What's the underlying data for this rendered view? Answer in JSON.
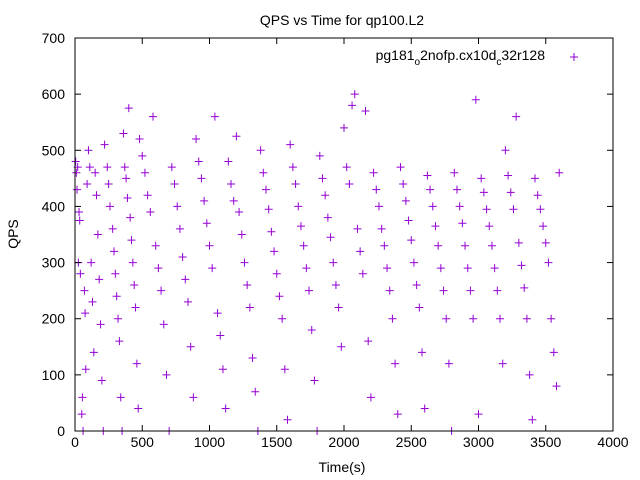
{
  "chart_data": {
    "type": "scatter",
    "title": "QPS vs Time for qp100.L2",
    "xlabel": "Time(s)",
    "ylabel": "QPS",
    "xlim": [
      0,
      4000
    ],
    "ylim": [
      0,
      700
    ],
    "x_ticks": [
      "0",
      "500",
      "1000",
      "1500",
      "2000",
      "2500",
      "3000",
      "3500",
      "4000"
    ],
    "y_ticks": [
      "0",
      "100",
      "200",
      "300",
      "400",
      "500",
      "600",
      "700"
    ],
    "grid": false,
    "legend_position": "top-right",
    "marker": "+",
    "color": "#9400d3",
    "series": [
      {
        "name": "pg181_o2nofp.cx10d_c32r128",
        "legend_parts": {
          "a": "pg181",
          "s1": "o",
          "b": "2nofp.cx10d",
          "s2": "c",
          "c": "32r128"
        },
        "values": [
          [
            5,
            480
          ],
          [
            10,
            460
          ],
          [
            15,
            430
          ],
          [
            20,
            470
          ],
          [
            25,
            300
          ],
          [
            30,
            390
          ],
          [
            35,
            375
          ],
          [
            40,
            280
          ],
          [
            50,
            30
          ],
          [
            55,
            60
          ],
          [
            60,
            0
          ],
          [
            70,
            250
          ],
          [
            75,
            210
          ],
          [
            80,
            110
          ],
          [
            90,
            440
          ],
          [
            100,
            500
          ],
          [
            110,
            470
          ],
          [
            120,
            300
          ],
          [
            130,
            230
          ],
          [
            140,
            140
          ],
          [
            150,
            460
          ],
          [
            160,
            420
          ],
          [
            170,
            350
          ],
          [
            180,
            270
          ],
          [
            190,
            190
          ],
          [
            200,
            90
          ],
          [
            210,
            0
          ],
          [
            220,
            510
          ],
          [
            240,
            470
          ],
          [
            250,
            440
          ],
          [
            260,
            400
          ],
          [
            280,
            360
          ],
          [
            290,
            320
          ],
          [
            300,
            280
          ],
          [
            310,
            240
          ],
          [
            320,
            200
          ],
          [
            330,
            160
          ],
          [
            340,
            60
          ],
          [
            350,
            0
          ],
          [
            360,
            530
          ],
          [
            370,
            470
          ],
          [
            380,
            450
          ],
          [
            390,
            415
          ],
          [
            400,
            575
          ],
          [
            410,
            380
          ],
          [
            420,
            340
          ],
          [
            430,
            300
          ],
          [
            440,
            260
          ],
          [
            450,
            220
          ],
          [
            460,
            120
          ],
          [
            470,
            40
          ],
          [
            480,
            520
          ],
          [
            500,
            490
          ],
          [
            520,
            460
          ],
          [
            540,
            420
          ],
          [
            560,
            390
          ],
          [
            580,
            560
          ],
          [
            600,
            330
          ],
          [
            620,
            290
          ],
          [
            640,
            250
          ],
          [
            660,
            190
          ],
          [
            680,
            100
          ],
          [
            700,
            0
          ],
          [
            720,
            470
          ],
          [
            740,
            440
          ],
          [
            760,
            400
          ],
          [
            780,
            360
          ],
          [
            800,
            310
          ],
          [
            820,
            270
          ],
          [
            840,
            230
          ],
          [
            860,
            150
          ],
          [
            880,
            60
          ],
          [
            900,
            520
          ],
          [
            920,
            480
          ],
          [
            940,
            450
          ],
          [
            960,
            410
          ],
          [
            980,
            370
          ],
          [
            1000,
            330
          ],
          [
            1020,
            290
          ],
          [
            1040,
            560
          ],
          [
            1060,
            210
          ],
          [
            1080,
            170
          ],
          [
            1100,
            110
          ],
          [
            1120,
            40
          ],
          [
            1140,
            480
          ],
          [
            1160,
            440
          ],
          [
            1180,
            410
          ],
          [
            1200,
            525
          ],
          [
            1220,
            390
          ],
          [
            1240,
            350
          ],
          [
            1260,
            300
          ],
          [
            1280,
            260
          ],
          [
            1300,
            220
          ],
          [
            1320,
            130
          ],
          [
            1340,
            70
          ],
          [
            1360,
            0
          ],
          [
            1380,
            500
          ],
          [
            1400,
            460
          ],
          [
            1420,
            430
          ],
          [
            1440,
            395
          ],
          [
            1460,
            355
          ],
          [
            1480,
            320
          ],
          [
            1500,
            280
          ],
          [
            1520,
            240
          ],
          [
            1540,
            200
          ],
          [
            1560,
            110
          ],
          [
            1580,
            20
          ],
          [
            1600,
            510
          ],
          [
            1620,
            470
          ],
          [
            1640,
            440
          ],
          [
            1660,
            400
          ],
          [
            1680,
            365
          ],
          [
            1700,
            330
          ],
          [
            1720,
            290
          ],
          [
            1740,
            250
          ],
          [
            1760,
            180
          ],
          [
            1780,
            90
          ],
          [
            1800,
            0
          ],
          [
            1820,
            490
          ],
          [
            1840,
            450
          ],
          [
            1860,
            420
          ],
          [
            1880,
            380
          ],
          [
            1900,
            345
          ],
          [
            1920,
            300
          ],
          [
            1940,
            260
          ],
          [
            1960,
            220
          ],
          [
            1980,
            150
          ],
          [
            2000,
            540
          ],
          [
            2020,
            470
          ],
          [
            2040,
            440
          ],
          [
            2060,
            580
          ],
          [
            2080,
            600
          ],
          [
            2100,
            360
          ],
          [
            2120,
            320
          ],
          [
            2140,
            280
          ],
          [
            2160,
            570
          ],
          [
            2180,
            160
          ],
          [
            2200,
            60
          ],
          [
            2220,
            460
          ],
          [
            2240,
            430
          ],
          [
            2260,
            400
          ],
          [
            2280,
            360
          ],
          [
            2300,
            330
          ],
          [
            2320,
            290
          ],
          [
            2340,
            250
          ],
          [
            2360,
            200
          ],
          [
            2380,
            120
          ],
          [
            2400,
            30
          ],
          [
            2420,
            470
          ],
          [
            2440,
            440
          ],
          [
            2460,
            410
          ],
          [
            2480,
            375
          ],
          [
            2500,
            340
          ],
          [
            2520,
            300
          ],
          [
            2540,
            260
          ],
          [
            2560,
            220
          ],
          [
            2580,
            140
          ],
          [
            2600,
            40
          ],
          [
            2620,
            455
          ],
          [
            2640,
            430
          ],
          [
            2660,
            400
          ],
          [
            2680,
            365
          ],
          [
            2700,
            330
          ],
          [
            2720,
            290
          ],
          [
            2740,
            250
          ],
          [
            2760,
            200
          ],
          [
            2780,
            120
          ],
          [
            2800,
            0
          ],
          [
            2820,
            460
          ],
          [
            2840,
            430
          ],
          [
            2860,
            400
          ],
          [
            2880,
            370
          ],
          [
            2900,
            330
          ],
          [
            2920,
            290
          ],
          [
            2940,
            250
          ],
          [
            2960,
            200
          ],
          [
            2980,
            590
          ],
          [
            3000,
            30
          ],
          [
            3020,
            450
          ],
          [
            3040,
            425
          ],
          [
            3060,
            395
          ],
          [
            3080,
            365
          ],
          [
            3100,
            330
          ],
          [
            3120,
            290
          ],
          [
            3140,
            250
          ],
          [
            3160,
            200
          ],
          [
            3180,
            120
          ],
          [
            3200,
            500
          ],
          [
            3220,
            455
          ],
          [
            3240,
            425
          ],
          [
            3260,
            395
          ],
          [
            3280,
            560
          ],
          [
            3300,
            335
          ],
          [
            3320,
            295
          ],
          [
            3340,
            255
          ],
          [
            3360,
            200
          ],
          [
            3380,
            100
          ],
          [
            3400,
            20
          ],
          [
            3420,
            450
          ],
          [
            3440,
            420
          ],
          [
            3460,
            395
          ],
          [
            3480,
            365
          ],
          [
            3500,
            335
          ],
          [
            3520,
            300
          ],
          [
            3540,
            200
          ],
          [
            3560,
            140
          ],
          [
            3580,
            80
          ],
          [
            3600,
            460
          ]
        ]
      }
    ]
  }
}
